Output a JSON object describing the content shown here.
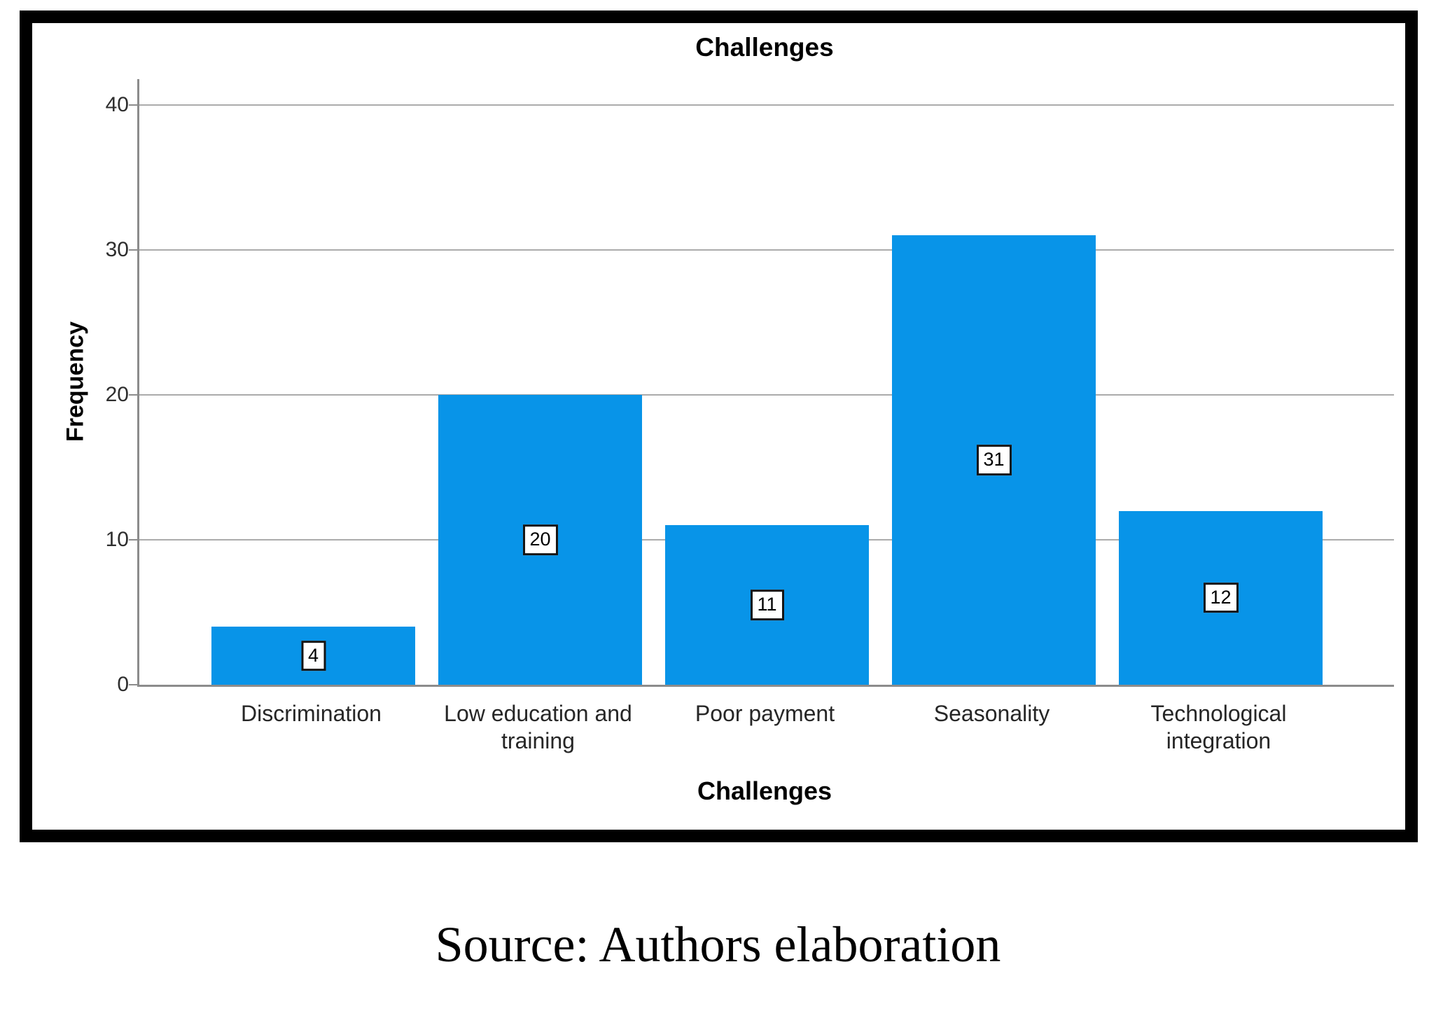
{
  "chart_data": {
    "type": "bar",
    "title": "Challenges",
    "xlabel": "Challenges",
    "ylabel": "Frequency",
    "categories": [
      "Discrimination",
      "Low education and training",
      "Poor payment",
      "Seasonality",
      "Technological integration"
    ],
    "values": [
      4,
      20,
      11,
      31,
      12
    ],
    "data_labels": [
      "4",
      "20",
      "11",
      "31",
      "12"
    ],
    "yticks": [
      0,
      10,
      20,
      30,
      40
    ],
    "ylim": [
      0,
      42
    ],
    "grid": true,
    "legend": "none",
    "data_label_style": "boxed-at-bar-center",
    "bar_color": "#0894e8",
    "grid_color": "#ababab",
    "axis_color": "#8c8c8c",
    "frame_color": "#000000",
    "caption": "Source: Authors elaboration"
  }
}
